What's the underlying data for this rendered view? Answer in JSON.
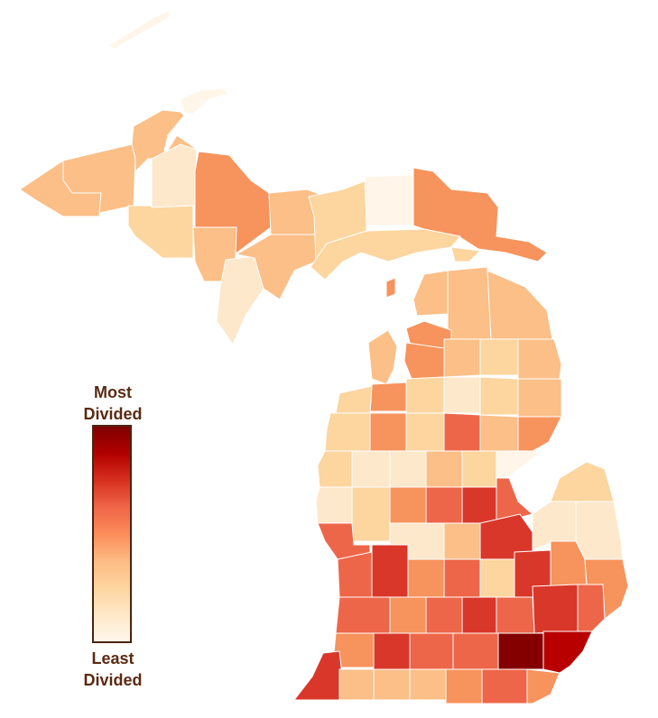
{
  "legend": {
    "top_label": "Most\nDivided",
    "bottom_label": "Least\nDivided",
    "scale_colors": [
      "#7f0000",
      "#b30000",
      "#d7301f",
      "#ef6548",
      "#fc8d59",
      "#fdbb84",
      "#fdd49e",
      "#fee8c8",
      "#fff7ec"
    ]
  },
  "levels": {
    "0": "#fff5e8",
    "1": "#fde8cc",
    "2": "#fcd59f",
    "3": "#fbbf87",
    "4": "#f7935c",
    "5": "#ee6649",
    "6": "#d9372a",
    "7": "#b80000",
    "8": "#840000"
  },
  "regions": [
    {
      "name": "keweenaw",
      "level": 0
    },
    {
      "name": "houghton",
      "level": 3
    },
    {
      "name": "ontonagon",
      "level": 3
    },
    {
      "name": "gogebic",
      "level": 3
    },
    {
      "name": "baraga",
      "level": 3
    },
    {
      "name": "iron",
      "level": 2
    },
    {
      "name": "marquette-w",
      "level": 1
    },
    {
      "name": "marquette-e",
      "level": 4
    },
    {
      "name": "dickinson",
      "level": 3
    },
    {
      "name": "menominee",
      "level": 1
    },
    {
      "name": "delta",
      "level": 3
    },
    {
      "name": "alger",
      "level": 3
    },
    {
      "name": "schoolcraft",
      "level": 2
    },
    {
      "name": "luce",
      "level": 0
    },
    {
      "name": "chippewa",
      "level": 4
    },
    {
      "name": "mackinac",
      "level": 2
    },
    {
      "name": "mackinac-e",
      "level": 2
    },
    {
      "name": "beaver-island",
      "level": 4
    },
    {
      "name": "emmet",
      "level": 3
    },
    {
      "name": "cheboygan",
      "level": 3
    },
    {
      "name": "presque-isle",
      "level": 3
    },
    {
      "name": "charlevoix",
      "level": 4
    },
    {
      "name": "antrim",
      "level": 4
    },
    {
      "name": "otsego",
      "level": 3
    },
    {
      "name": "montmorency",
      "level": 2
    },
    {
      "name": "alpena",
      "level": 3
    },
    {
      "name": "leelanau",
      "level": 3
    },
    {
      "name": "grand-traverse",
      "level": 4
    },
    {
      "name": "kalkaska",
      "level": 2
    },
    {
      "name": "crawford",
      "level": 1
    },
    {
      "name": "oscoda",
      "level": 2
    },
    {
      "name": "alcona",
      "level": 3
    },
    {
      "name": "benzie",
      "level": 2
    },
    {
      "name": "wexford",
      "level": 4
    },
    {
      "name": "missaukee",
      "level": 2
    },
    {
      "name": "roscommon",
      "level": 5
    },
    {
      "name": "ogemaw",
      "level": 3
    },
    {
      "name": "iosco",
      "level": 4
    },
    {
      "name": "manistee",
      "level": 2
    },
    {
      "name": "lake",
      "level": 1
    },
    {
      "name": "osceola",
      "level": 1
    },
    {
      "name": "clare",
      "level": 3
    },
    {
      "name": "gladwin",
      "level": 2
    },
    {
      "name": "arenac",
      "level": 0
    },
    {
      "name": "mason",
      "level": 2
    },
    {
      "name": "oceana",
      "level": 1
    },
    {
      "name": "newaygo",
      "level": 2
    },
    {
      "name": "mecosta",
      "level": 4
    },
    {
      "name": "isabella",
      "level": 5
    },
    {
      "name": "midland",
      "level": 6
    },
    {
      "name": "bay",
      "level": 5
    },
    {
      "name": "huron",
      "level": 2
    },
    {
      "name": "muskegon",
      "level": 5
    },
    {
      "name": "montcalm",
      "level": 1
    },
    {
      "name": "gratiot",
      "level": 3
    },
    {
      "name": "saginaw",
      "level": 6
    },
    {
      "name": "tuscola",
      "level": 1
    },
    {
      "name": "sanilac",
      "level": 1
    },
    {
      "name": "ottawa",
      "level": 5
    },
    {
      "name": "kent",
      "level": 6
    },
    {
      "name": "ionia",
      "level": 4
    },
    {
      "name": "clinton",
      "level": 5
    },
    {
      "name": "shiawassee",
      "level": 2
    },
    {
      "name": "genesee",
      "level": 6
    },
    {
      "name": "lapeer",
      "level": 4
    },
    {
      "name": "st-clair",
      "level": 4
    },
    {
      "name": "allegan",
      "level": 5
    },
    {
      "name": "barry",
      "level": 4
    },
    {
      "name": "eaton",
      "level": 5
    },
    {
      "name": "ingham",
      "level": 6
    },
    {
      "name": "livingston",
      "level": 5
    },
    {
      "name": "oakland",
      "level": 6
    },
    {
      "name": "macomb",
      "level": 5
    },
    {
      "name": "van-buren",
      "level": 4
    },
    {
      "name": "kalamazoo",
      "level": 6
    },
    {
      "name": "calhoun",
      "level": 5
    },
    {
      "name": "jackson",
      "level": 5
    },
    {
      "name": "washtenaw",
      "level": 8
    },
    {
      "name": "wayne",
      "level": 7
    },
    {
      "name": "berrien",
      "level": 6
    },
    {
      "name": "cass",
      "level": 3
    },
    {
      "name": "st-joseph",
      "level": 3
    },
    {
      "name": "branch",
      "level": 3
    },
    {
      "name": "hillsdale",
      "level": 4
    },
    {
      "name": "lenawee",
      "level": 5
    },
    {
      "name": "monroe",
      "level": 4
    }
  ]
}
